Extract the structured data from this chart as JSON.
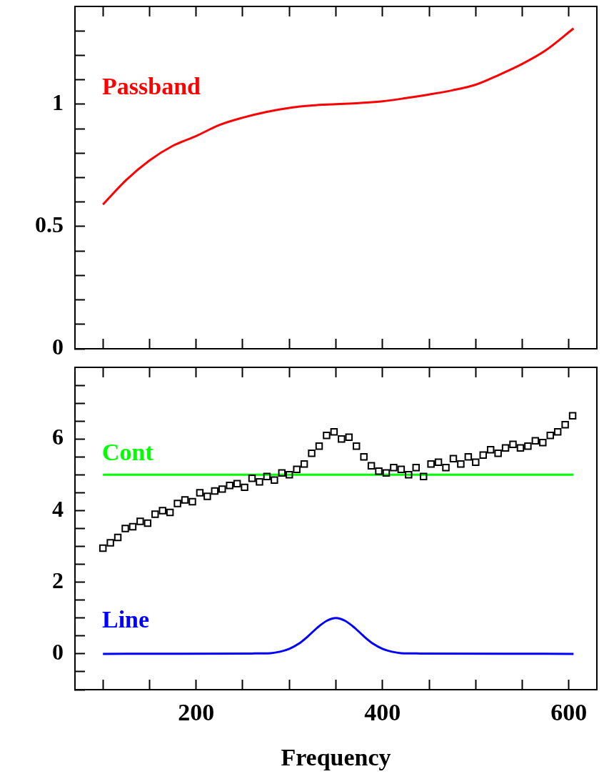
{
  "chart_data": [
    {
      "type": "line",
      "xlim": [
        70,
        630
      ],
      "xticks": [
        {
          "value": 100,
          "label": null
        },
        {
          "value": 150,
          "label": null
        },
        {
          "value": 200,
          "label": null
        },
        {
          "value": 250,
          "label": null
        },
        {
          "value": 300,
          "label": null
        },
        {
          "value": 350,
          "label": null
        },
        {
          "value": 400,
          "label": null
        },
        {
          "value": 450,
          "label": null
        },
        {
          "value": 500,
          "label": null
        },
        {
          "value": 550,
          "label": null
        },
        {
          "value": 600,
          "label": null
        }
      ],
      "ylim": [
        0,
        1.4
      ],
      "yticks": [
        0,
        {
          "value": 0.1,
          "label": null
        },
        {
          "value": 0.2,
          "label": null
        },
        {
          "value": 0.3,
          "label": null
        },
        {
          "value": 0.4,
          "label": null
        },
        0.5,
        {
          "value": 0.6,
          "label": null
        },
        {
          "value": 0.7,
          "label": null
        },
        {
          "value": 0.8,
          "label": null
        },
        {
          "value": 0.9,
          "label": null
        },
        1,
        {
          "value": 1.1,
          "label": null
        },
        {
          "value": 1.2,
          "label": null
        },
        {
          "value": 1.3,
          "label": null
        }
      ],
      "tick_labels": "y",
      "series": [
        {
          "name": "Passband",
          "color": "#ff0000",
          "x": [
            100,
            125,
            150,
            175,
            200,
            225,
            250,
            275,
            300,
            325,
            350,
            375,
            400,
            425,
            450,
            475,
            500,
            525,
            550,
            575,
            605
          ],
          "values": [
            0.59,
            0.69,
            0.77,
            0.83,
            0.87,
            0.915,
            0.945,
            0.968,
            0.985,
            0.995,
            1.0,
            1.005,
            1.012,
            1.025,
            1.04,
            1.057,
            1.08,
            1.12,
            1.165,
            1.22,
            1.31
          ]
        }
      ]
    },
    {
      "type": "line",
      "xlabel": "Frequency",
      "xlim": [
        70,
        630
      ],
      "xticks": [
        {
          "value": 100,
          "label": null
        },
        {
          "value": 150,
          "label": null
        },
        200,
        {
          "value": 250,
          "label": null
        },
        {
          "value": 300,
          "label": null
        },
        {
          "value": 350,
          "label": null
        },
        400,
        {
          "value": 450,
          "label": null
        },
        {
          "value": 500,
          "label": null
        },
        {
          "value": 550,
          "label": null
        },
        600
      ],
      "ylim": [
        -1,
        8
      ],
      "yticks": [
        {
          "value": -1,
          "label": null
        },
        {
          "value": -0.5,
          "label": null
        },
        0,
        {
          "value": 0.5,
          "label": null
        },
        {
          "value": 1,
          "label": null
        },
        {
          "value": 1.5,
          "label": null
        },
        2,
        {
          "value": 2.5,
          "label": null
        },
        {
          "value": 3,
          "label": null
        },
        {
          "value": 3.5,
          "label": null
        },
        4,
        {
          "value": 4.5,
          "label": null
        },
        {
          "value": 5,
          "label": null
        },
        {
          "value": 5.5,
          "label": null
        },
        6,
        {
          "value": 6.5,
          "label": null
        },
        {
          "value": 7,
          "label": null
        },
        {
          "value": 7.5,
          "label": null
        }
      ],
      "series": [
        {
          "type": "scatter",
          "marker": "square",
          "color": "#000000",
          "x": [
            100,
            108,
            116,
            124,
            132,
            140,
            148,
            156,
            164,
            172,
            180,
            188,
            196,
            204,
            212,
            220,
            228,
            236,
            244,
            252,
            260,
            268,
            276,
            284,
            292,
            300,
            308,
            316,
            324,
            332,
            340,
            348,
            356,
            364,
            372,
            380,
            388,
            396,
            404,
            412,
            420,
            428,
            436,
            444,
            452,
            460,
            468,
            476,
            484,
            492,
            500,
            508,
            516,
            524,
            532,
            540,
            548,
            556,
            564,
            572,
            580,
            588,
            596,
            604
          ],
          "values": [
            2.95,
            3.1,
            3.25,
            3.5,
            3.55,
            3.7,
            3.65,
            3.9,
            4.0,
            3.95,
            4.2,
            4.3,
            4.25,
            4.5,
            4.4,
            4.55,
            4.6,
            4.7,
            4.75,
            4.65,
            4.9,
            4.8,
            4.95,
            4.85,
            5.05,
            5.0,
            5.15,
            5.3,
            5.6,
            5.8,
            6.1,
            6.2,
            6.0,
            6.05,
            5.8,
            5.5,
            5.25,
            5.1,
            5.05,
            5.2,
            5.15,
            5.0,
            5.2,
            4.95,
            5.3,
            5.35,
            5.2,
            5.45,
            5.3,
            5.5,
            5.35,
            5.55,
            5.7,
            5.6,
            5.75,
            5.85,
            5.75,
            5.8,
            5.95,
            5.9,
            6.1,
            6.2,
            6.4,
            6.65
          ]
        },
        {
          "type": "line",
          "name": "Cont",
          "color": "#00ff00",
          "x": [
            100,
            605
          ],
          "values": [
            5,
            5
          ]
        },
        {
          "type": "line",
          "name": "Line",
          "color": "#0000ff",
          "x": [
            100,
            260,
            280,
            290,
            300,
            310,
            320,
            330,
            340,
            350,
            360,
            370,
            380,
            390,
            400,
            410,
            420,
            440,
            605
          ],
          "values": [
            0,
            0.01,
            0.02,
            0.06,
            0.14,
            0.28,
            0.49,
            0.73,
            0.92,
            1,
            0.92,
            0.73,
            0.49,
            0.28,
            0.14,
            0.06,
            0.02,
            0.01,
            0
          ]
        }
      ]
    }
  ]
}
